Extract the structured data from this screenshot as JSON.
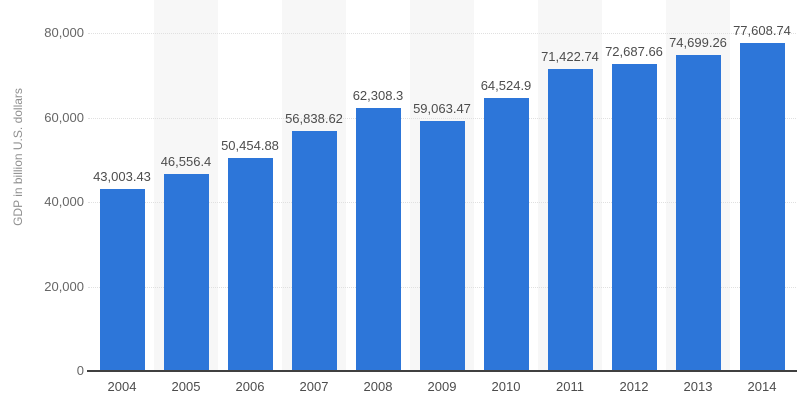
{
  "chart_data": {
    "type": "bar",
    "title": "",
    "xlabel": "",
    "ylabel": "GDP in billion U.S. dollars",
    "categories": [
      "2004",
      "2005",
      "2006",
      "2007",
      "2008",
      "2009",
      "2010",
      "2011",
      "2012",
      "2013",
      "2014"
    ],
    "values": [
      43003.43,
      46556.4,
      50454.88,
      56838.62,
      62308.3,
      59063.47,
      64524.9,
      71422.74,
      72687.66,
      74699.26,
      77608.74
    ],
    "value_labels": [
      "43,003.43",
      "46,556.4",
      "50,454.88",
      "56,838.62",
      "62,308.3",
      "59,063.47",
      "64,524.9",
      "71,422.74",
      "72,687.66",
      "74,699.26",
      "77,608.74"
    ],
    "ylim": [
      0,
      80000
    ],
    "yticks": [
      0,
      20000,
      40000,
      60000,
      80000
    ],
    "ytick_labels": [
      "0",
      "20,000",
      "40,000",
      "60,000",
      "80,000"
    ],
    "grid": true,
    "legend": false,
    "band_pattern": "alternating-columns-starting-white",
    "colors": {
      "bar": "#2d76d9",
      "band": "#f7f7f7",
      "gridline": "#e0e0e0",
      "axis_line": "#404040",
      "tick_label": "#666666",
      "value_label": "#4d4d4d",
      "category_label": "#4d4d4d",
      "axis_title": "#8f8f8f",
      "background": "#ffffff"
    }
  }
}
